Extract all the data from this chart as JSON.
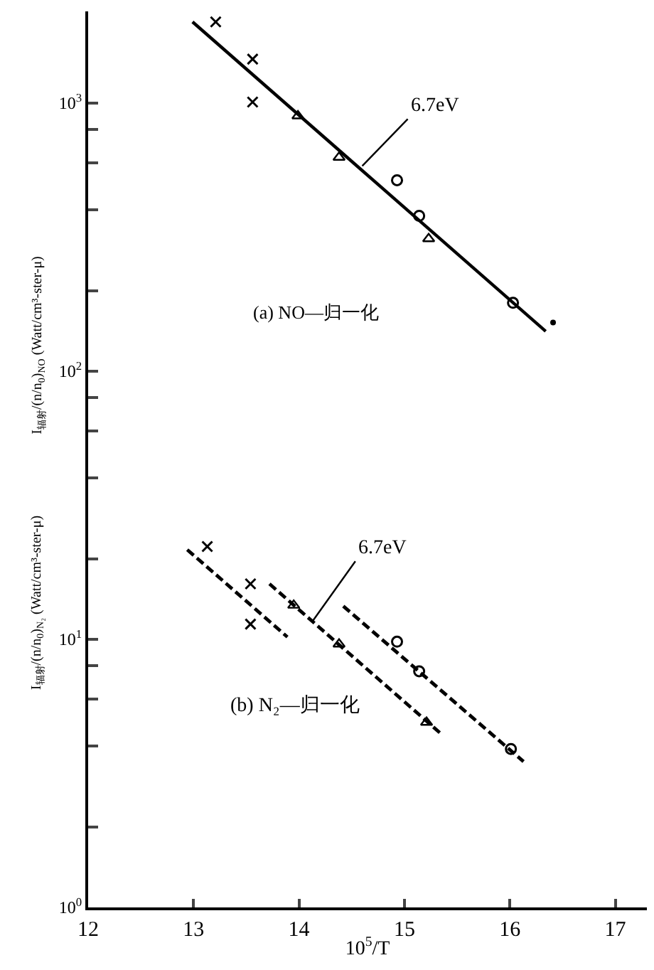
{
  "chart_data": {
    "type": "scatter",
    "xlabel": "10$^{5}$/T",
    "ylabel": "I$_{辐射}$/(n/n$_{0}$)$_{NO}$ (Watt/cm³-ster-μ)",
    "xlim": [
      12,
      17.3
    ],
    "ylim": [
      1,
      2200
    ],
    "log": "y",
    "xticks": [
      12,
      13,
      14,
      15,
      16,
      17
    ],
    "yticks": [
      {
        "value": 1,
        "label": "10$^{0}$"
      },
      {
        "value": 2,
        "label": null
      },
      {
        "value": 4,
        "label": null
      },
      {
        "value": 6,
        "label": null
      },
      {
        "value": 8,
        "label": null
      },
      {
        "value": 10,
        "label": "10$^{1}$"
      },
      {
        "value": 20,
        "label": null
      },
      {
        "value": 40,
        "label": null
      },
      {
        "value": 60,
        "label": null
      },
      {
        "value": 80,
        "label": null
      },
      {
        "value": 100,
        "label": "10$^{2}$"
      },
      {
        "value": 200,
        "label": null
      },
      {
        "value": 400,
        "label": null
      },
      {
        "value": 600,
        "label": null
      },
      {
        "value": 800,
        "label": null
      },
      {
        "value": 1000,
        "label": "10$^{3}$"
      }
    ],
    "series": [
      {
        "type": "line",
        "color": "#000000",
        "line_style": "solid",
        "x": [
          12.99,
          16.34
        ],
        "values": [
          2010,
          141
        ]
      },
      {
        "color": "#000000",
        "marker": "cross",
        "x": [
          13.21,
          13.56,
          13.56
        ],
        "values": [
          2010,
          1460,
          1010
        ]
      },
      {
        "color": "#000000",
        "marker": "triangle",
        "x": [
          13.99,
          14.38,
          15.23
        ],
        "values": [
          896,
          628,
          312
        ]
      },
      {
        "color": "#000000",
        "marker": "circle",
        "x": [
          14.93,
          15.14,
          16.03
        ],
        "values": [
          516,
          380,
          180
        ]
      },
      {
        "color": "#000000",
        "marker": "dot",
        "x": [
          16.41
        ],
        "values": [
          152
        ]
      },
      {
        "type": "line",
        "color": "#000000",
        "line_style": "dashed",
        "x": [
          12.94,
          13.89
        ],
        "values": [
          21.6,
          10.2
        ]
      },
      {
        "type": "line",
        "color": "#000000",
        "line_style": "dashed",
        "x": [
          13.72,
          15.36
        ],
        "values": [
          16.1,
          4.4
        ]
      },
      {
        "type": "line",
        "color": "#000000",
        "line_style": "dashed",
        "x": [
          14.42,
          16.13
        ],
        "values": [
          13.3,
          3.5
        ]
      },
      {
        "color": "#000000",
        "marker": "cross",
        "x": [
          13.13,
          13.54,
          13.54
        ],
        "values": [
          22.2,
          16.1,
          11.4
        ]
      },
      {
        "color": "#000000",
        "marker": "triangle",
        "x": [
          13.95,
          14.38,
          15.21
        ],
        "values": [
          13.4,
          9.6,
          4.9
        ]
      },
      {
        "color": "#000000",
        "marker": "circle",
        "x": [
          14.93,
          15.14,
          16.01
        ],
        "values": [
          9.8,
          7.6,
          3.9
        ]
      }
    ],
    "annotations": [
      "(a) NO—归一化",
      "(b) N₂—归一化",
      "I$_{辐射}$/(n/n$_{0}$)$_{N₂}$ (Watt/cm³-ster-μ)",
      {
        "text": "6.7eV",
        "x": 14.6,
        "y": 583
      },
      {
        "text": "6.7eV",
        "x": 14.13,
        "y": 11.7
      }
    ]
  }
}
